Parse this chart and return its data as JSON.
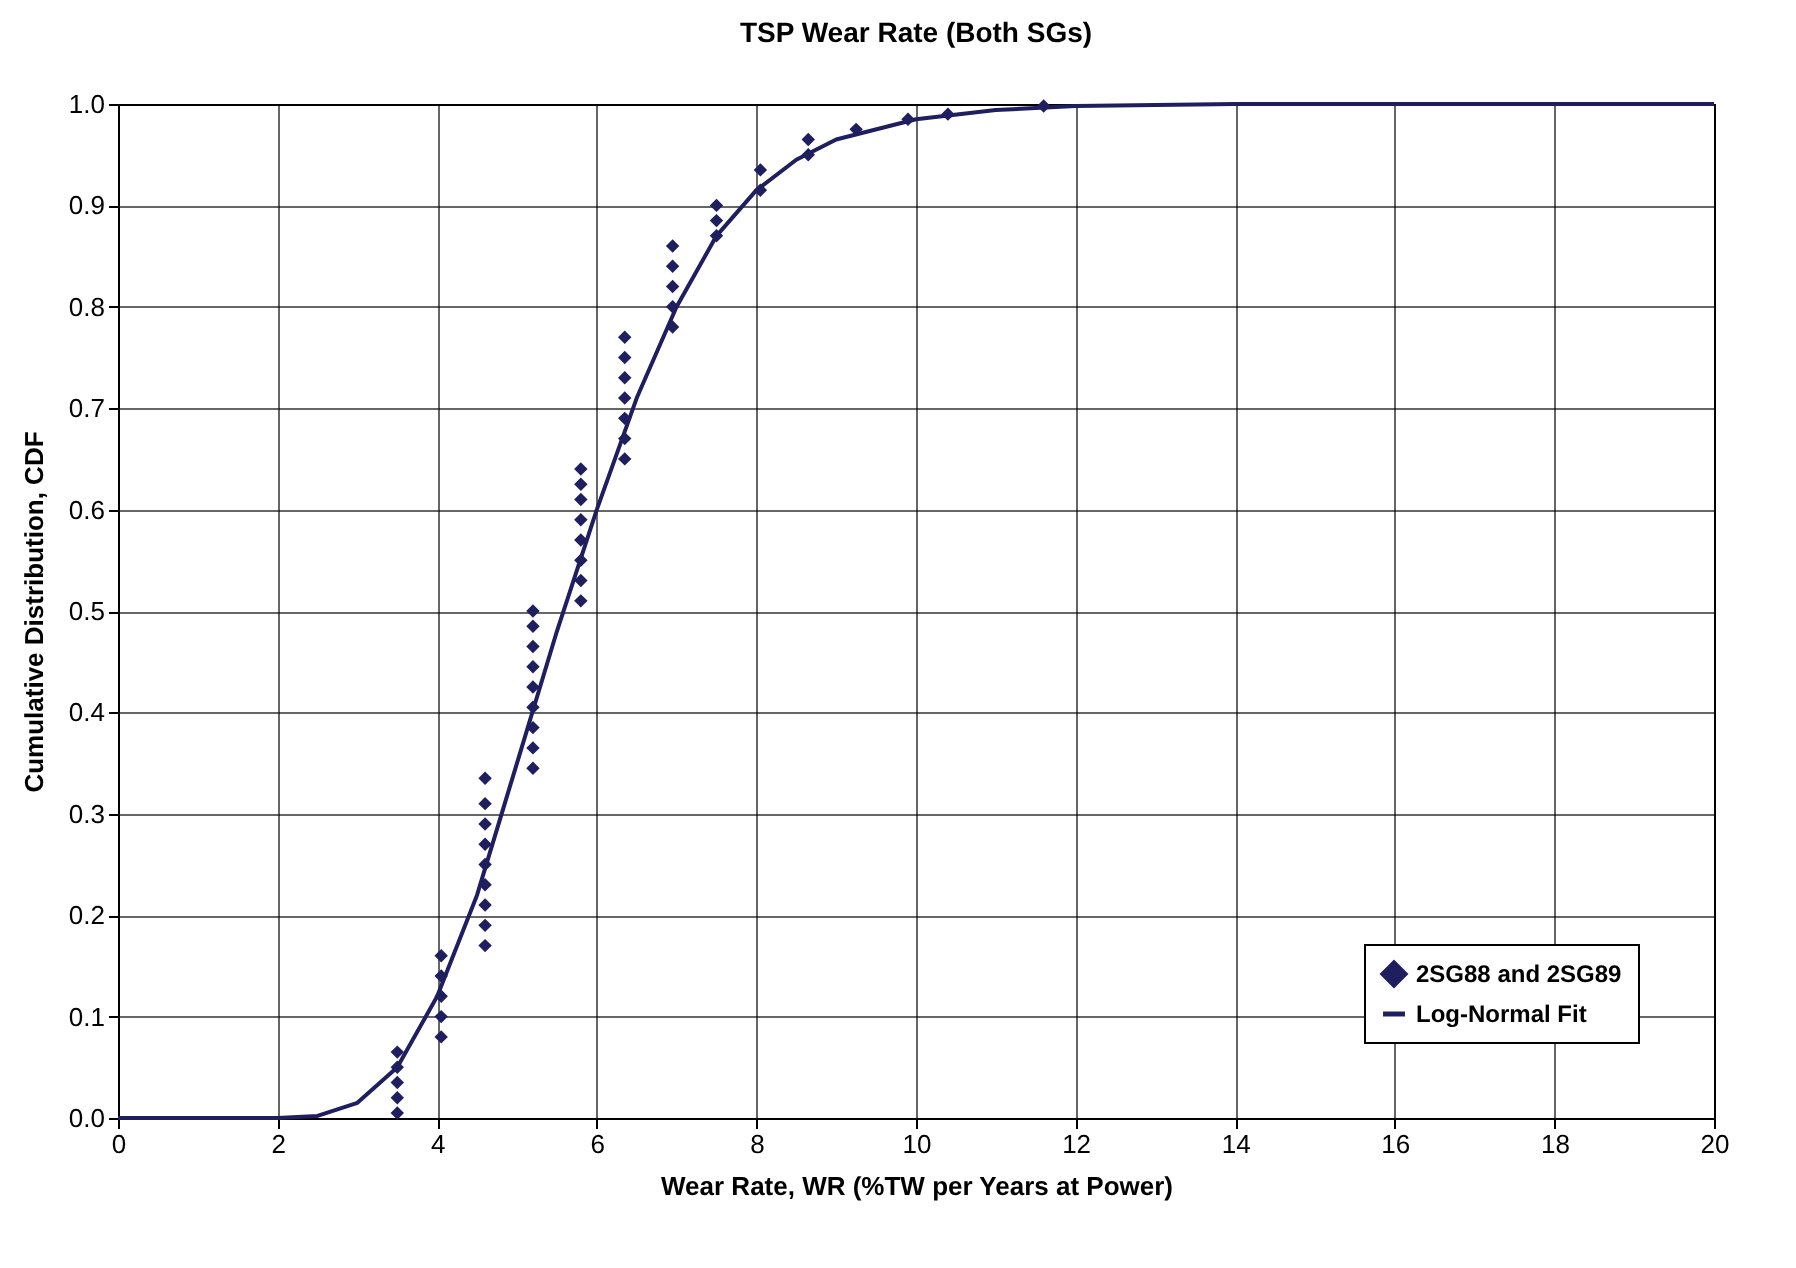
{
  "chart_data": {
    "type": "scatter",
    "title": "TSP Wear Rate (Both SGs)",
    "xlabel": "Wear Rate, WR  (%TW per Years at Power)",
    "ylabel": "Cumulative Distribution, CDF",
    "xlim": [
      0,
      20
    ],
    "xticks": [
      0,
      2,
      4,
      6,
      8,
      10,
      12,
      14,
      16,
      18,
      20
    ],
    "ylim": [
      0,
      1
    ],
    "yticks": [
      {
        "value": 0,
        "label": "0.0"
      },
      {
        "value": 0.1,
        "label": "0.1"
      },
      {
        "value": 0.2,
        "label": "0.2"
      },
      {
        "value": 0.3,
        "label": "0.3"
      },
      {
        "value": 0.4,
        "label": "0.4"
      },
      {
        "value": 0.5,
        "label": "0.5"
      },
      {
        "value": 0.6,
        "label": "0.6"
      },
      {
        "value": 0.7,
        "label": "0.7"
      },
      {
        "value": 0.8,
        "label": "0.8"
      },
      {
        "value": 0.9,
        "label": "0.9"
      },
      {
        "value": 1,
        "label": "1.0"
      }
    ],
    "grid": true,
    "legend": "bottom right",
    "marker": "diamond",
    "line_style": "solid",
    "series": [
      {
        "name": "2SG88 and 2SG89",
        "color": "#1f1f5f",
        "x": [
          3.5,
          3.5,
          3.5,
          3.5,
          3.5,
          4.05,
          4.05,
          4.05,
          4.05,
          4.05,
          4.6,
          4.6,
          4.6,
          4.6,
          4.6,
          4.6,
          4.6,
          4.6,
          4.6,
          5.2,
          5.2,
          5.2,
          5.2,
          5.2,
          5.2,
          5.2,
          5.2,
          5.2,
          5.8,
          5.8,
          5.8,
          5.8,
          5.8,
          5.8,
          5.8,
          5.8,
          6.35,
          6.35,
          6.35,
          6.35,
          6.35,
          6.35,
          6.35,
          6.95,
          6.95,
          6.95,
          6.95,
          6.95,
          7.5,
          7.5,
          7.5,
          8.05,
          8.05,
          8.65,
          8.65,
          9.25,
          9.9,
          10.4,
          11.6
        ],
        "values": [
          0.005,
          0.02,
          0.035,
          0.05,
          0.065,
          0.08,
          0.1,
          0.12,
          0.14,
          0.16,
          0.17,
          0.19,
          0.21,
          0.23,
          0.25,
          0.27,
          0.29,
          0.31,
          0.335,
          0.345,
          0.365,
          0.385,
          0.405,
          0.425,
          0.445,
          0.465,
          0.485,
          0.5,
          0.51,
          0.53,
          0.55,
          0.57,
          0.59,
          0.61,
          0.625,
          0.64,
          0.65,
          0.67,
          0.69,
          0.71,
          0.73,
          0.75,
          0.77,
          0.78,
          0.8,
          0.82,
          0.84,
          0.86,
          0.87,
          0.885,
          0.9,
          0.915,
          0.935,
          0.95,
          0.965,
          0.975,
          0.985,
          0.99,
          0.998
        ]
      },
      {
        "name": "Log-Normal Fit",
        "type": "line",
        "marker": "none",
        "color": "#1f1f5f",
        "x": [
          0,
          2,
          2.5,
          3,
          3.5,
          4,
          4.5,
          5,
          5.5,
          6,
          6.5,
          7,
          7.5,
          8,
          8.5,
          9,
          10,
          11,
          12,
          14,
          20
        ],
        "values": [
          0,
          0,
          0.002,
          0.015,
          0.05,
          0.12,
          0.22,
          0.35,
          0.48,
          0.6,
          0.71,
          0.8,
          0.87,
          0.915,
          0.945,
          0.965,
          0.985,
          0.994,
          0.998,
          1,
          1
        ]
      }
    ]
  }
}
